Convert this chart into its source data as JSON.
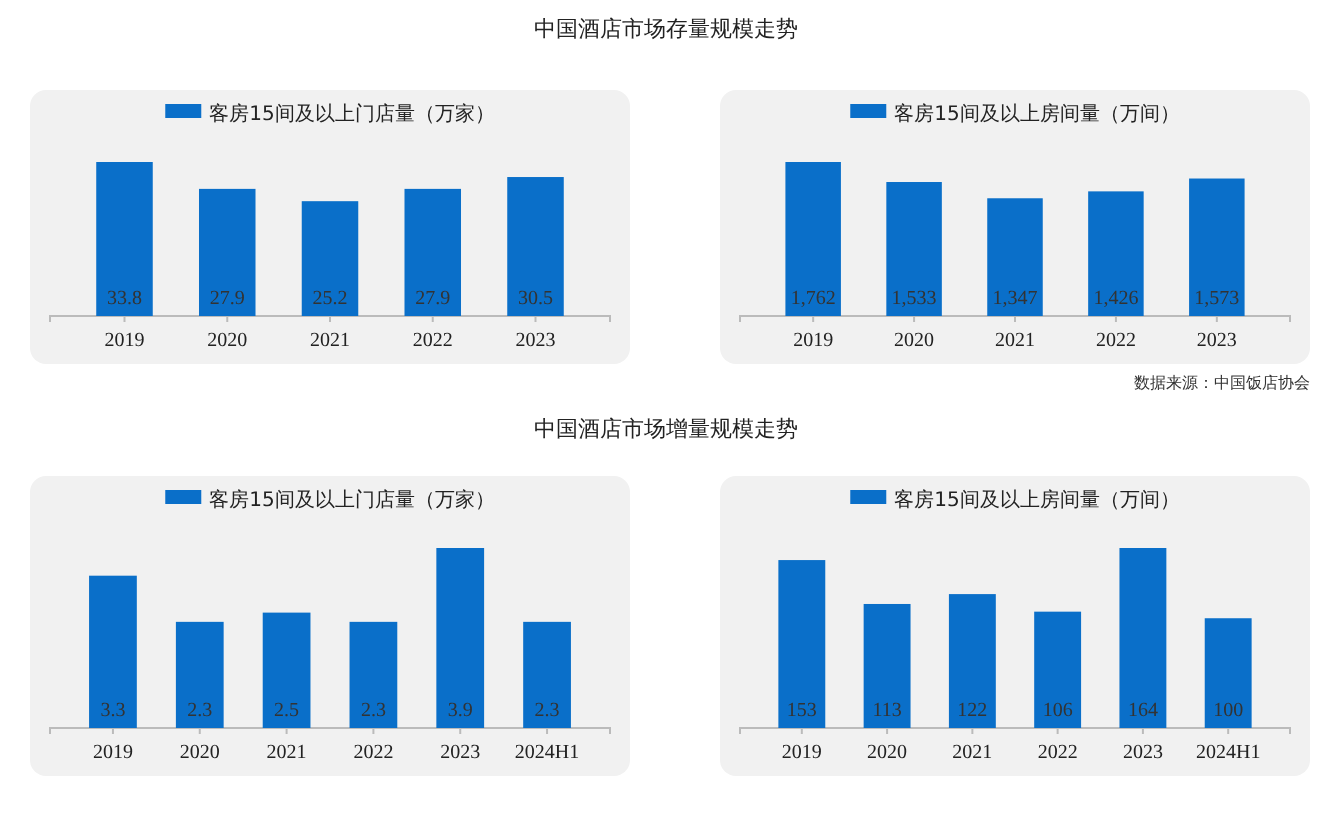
{
  "chart_data": [
    {
      "type": "bar",
      "title": "中国酒店市场存量规模走势",
      "categories": [
        "2019",
        "2020",
        "2021",
        "2022",
        "2023"
      ],
      "series": [
        {
          "name": "客房15间及以上门店量（万家）",
          "color": "#0a6fc9",
          "values": [
            33.8,
            27.9,
            25.2,
            27.9,
            30.5
          ]
        }
      ],
      "data_labels": true,
      "legend": "top",
      "tick_labels": "x"
    },
    {
      "type": "bar",
      "categories": [
        "2019",
        "2020",
        "2021",
        "2022",
        "2023"
      ],
      "series": [
        {
          "name": "客房15间及以上房间量（万间）",
          "color": "#0a6fc9",
          "values": [
            1762,
            1533,
            1347,
            1426,
            1573
          ],
          "value_labels": [
            "1,762",
            "1,533",
            "1,347",
            "1,426",
            "1,573"
          ]
        }
      ],
      "legend": "top",
      "tick_labels": "x",
      "annotations": [
        "数据来源：中国饭店协会"
      ]
    },
    {
      "type": "bar",
      "title": "中国酒店市场增量规模走势",
      "categories": [
        "2019",
        "2020",
        "2021",
        "2022",
        "2023",
        "2024H1"
      ],
      "series": [
        {
          "name": "客房15间及以上门店量（万家）",
          "color": "#0a6fc9",
          "values": [
            3.3,
            2.3,
            2.5,
            2.3,
            3.9,
            2.3
          ]
        }
      ],
      "data_labels": true,
      "legend": "top",
      "tick_labels": "x"
    },
    {
      "type": "bar",
      "categories": [
        "2019",
        "2020",
        "2021",
        "2022",
        "2023",
        "2024H1"
      ],
      "series": [
        {
          "name": "客房15间及以上房间量（万间）",
          "color": "#0a6fc9",
          "values": [
            153,
            113,
            122,
            106,
            164,
            100
          ]
        }
      ],
      "data_labels": true,
      "legend": "top",
      "tick_labels": "x"
    }
  ]
}
